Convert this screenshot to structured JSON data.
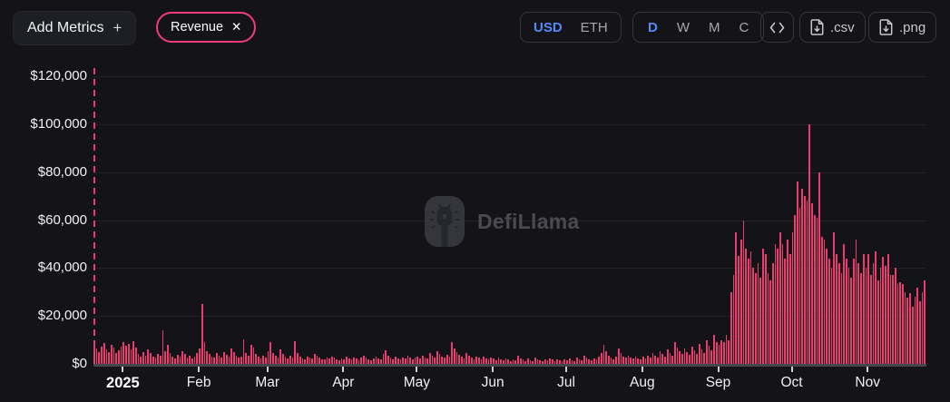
{
  "header": {
    "add_metrics_label": "Add Metrics",
    "add_metrics_plus": "+",
    "metric_pill": {
      "label": "Revenue",
      "close": "✕"
    },
    "currency_toggle": {
      "options": [
        "USD",
        "ETH"
      ],
      "selected": "USD"
    },
    "interval_toggle": {
      "options": [
        "D",
        "W",
        "M",
        "C"
      ],
      "selected": "D"
    },
    "export_csv_label": ".csv",
    "export_png_label": ".png"
  },
  "watermark": {
    "label": "DefiLlama"
  },
  "colors": {
    "background": "#141418",
    "bar_pink": "#ec3b6e",
    "pill_pink": "#f23b77",
    "active_blue": "#548af7",
    "watermark_gray": "#4a4b50"
  },
  "chart_data": {
    "type": "bar",
    "series_name": "Revenue",
    "unit": "USD",
    "frequency": "daily",
    "start_date": "2024-12-20",
    "ylim": [
      0,
      120000
    ],
    "grid": true,
    "y_ticks": [
      {
        "label": "$0",
        "value": 0
      },
      {
        "label": "$20,000",
        "value": 20000
      },
      {
        "label": "$40,000",
        "value": 40000
      },
      {
        "label": "$60,000",
        "value": 60000
      },
      {
        "label": "$80,000",
        "value": 80000
      },
      {
        "label": "$100,000",
        "value": 100000
      },
      {
        "label": "$120,000",
        "value": 120000
      }
    ],
    "x_ticks": [
      {
        "label": "2025",
        "day_index": 12,
        "bold": true
      },
      {
        "label": "Feb",
        "day_index": 43
      },
      {
        "label": "Mar",
        "day_index": 71
      },
      {
        "label": "Apr",
        "day_index": 102
      },
      {
        "label": "May",
        "day_index": 132
      },
      {
        "label": "Jun",
        "day_index": 163
      },
      {
        "label": "Jul",
        "day_index": 193
      },
      {
        "label": "Aug",
        "day_index": 224
      },
      {
        "label": "Sep",
        "day_index": 255
      },
      {
        "label": "Oct",
        "day_index": 285
      },
      {
        "label": "Nov",
        "day_index": 316
      }
    ],
    "values": [
      8200,
      6500,
      4800,
      7400,
      8800,
      6200,
      5100,
      7900,
      6800,
      4400,
      5600,
      7200,
      9000,
      7500,
      8200,
      6000,
      9500,
      7000,
      4200,
      3000,
      4800,
      3600,
      6200,
      4500,
      3200,
      2600,
      4000,
      3400,
      14000,
      5200,
      7800,
      4600,
      3000,
      2400,
      3800,
      3000,
      5400,
      4200,
      2800,
      3500,
      2200,
      3000,
      4600,
      6500,
      25000,
      9000,
      5500,
      4000,
      3200,
      2600,
      4400,
      3600,
      2800,
      5000,
      3800,
      3000,
      6400,
      4800,
      3400,
      2600,
      3000,
      10200,
      4400,
      3600,
      8000,
      6800,
      4000,
      3200,
      2400,
      3600,
      2800,
      5500,
      9200,
      4600,
      3400,
      2800,
      6200,
      4000,
      3000,
      2200,
      3600,
      2600,
      9600,
      4400,
      3200,
      2400,
      2000,
      3000,
      2600,
      2200,
      4200,
      3400,
      2800,
      2000,
      1800,
      2600,
      2200,
      3200,
      2600,
      2000,
      1600,
      2400,
      2000,
      3200,
      2400,
      1800,
      2800,
      2200,
      1600,
      2600,
      3600,
      2800,
      2000,
      1600,
      2400,
      3000,
      2200,
      1800,
      4200,
      5600,
      3400,
      2600,
      2000,
      3000,
      2400,
      1800,
      2800,
      2200,
      3400,
      2600,
      2000,
      2800,
      3000,
      2400,
      3600,
      2800,
      2200,
      4600,
      3600,
      2800,
      5200,
      4200,
      3200,
      2600,
      3800,
      3000,
      9000,
      6400,
      5000,
      3800,
      3000,
      2400,
      4400,
      3400,
      2600,
      2000,
      3200,
      2600,
      2000,
      3000,
      2400,
      1800,
      2600,
      2200,
      1600,
      2800,
      2000,
      1400,
      2400,
      1800,
      1200,
      2000,
      1600,
      3400,
      2400,
      1800,
      1200,
      2200,
      1600,
      1200,
      2600,
      2000,
      1400,
      1000,
      1800,
      1400,
      2400,
      1800,
      1200,
      2000,
      1600,
      1000,
      1800,
      1400,
      2200,
      1600,
      1200,
      2600,
      2000,
      1400,
      3400,
      2600,
      1800,
      1400,
      2400,
      1800,
      3000,
      4600,
      8000,
      5400,
      3600,
      2800,
      2000,
      3000,
      6400,
      4400,
      3200,
      2600,
      3600,
      2800,
      2200,
      3200,
      2400,
      2000,
      3000,
      2400,
      3600,
      2800,
      4400,
      3400,
      2600,
      5200,
      4000,
      3200,
      6000,
      4600,
      3600,
      9200,
      7000,
      5200,
      4000,
      6600,
      5000,
      3800,
      7400,
      5600,
      4200,
      8200,
      6200,
      4600,
      10000,
      7600,
      5600,
      12000,
      9000,
      8000,
      10000,
      9000,
      12000,
      10000,
      30000,
      37000,
      55000,
      45000,
      52000,
      60000,
      48000,
      44000,
      47000,
      40000,
      38000,
      42000,
      36000,
      48000,
      46000,
      38000,
      35000,
      42000,
      50000,
      48000,
      55000,
      50000,
      44000,
      52000,
      46000,
      55000,
      62000,
      76000,
      65000,
      73000,
      70000,
      68000,
      100000,
      67000,
      62000,
      61000,
      80000,
      53000,
      52000,
      48000,
      44000,
      40000,
      55000,
      46000,
      42000,
      38000,
      50000,
      44000,
      40000,
      36000,
      44000,
      52000,
      42000,
      38000,
      46000,
      40000,
      46000,
      37000,
      42000,
      47000,
      35000,
      40000,
      44500,
      41000,
      46000,
      37000,
      37000,
      40000,
      33500,
      34000,
      33500,
      30000,
      27500,
      29500,
      24000,
      28000,
      32000,
      26000,
      30000,
      35000
    ]
  }
}
